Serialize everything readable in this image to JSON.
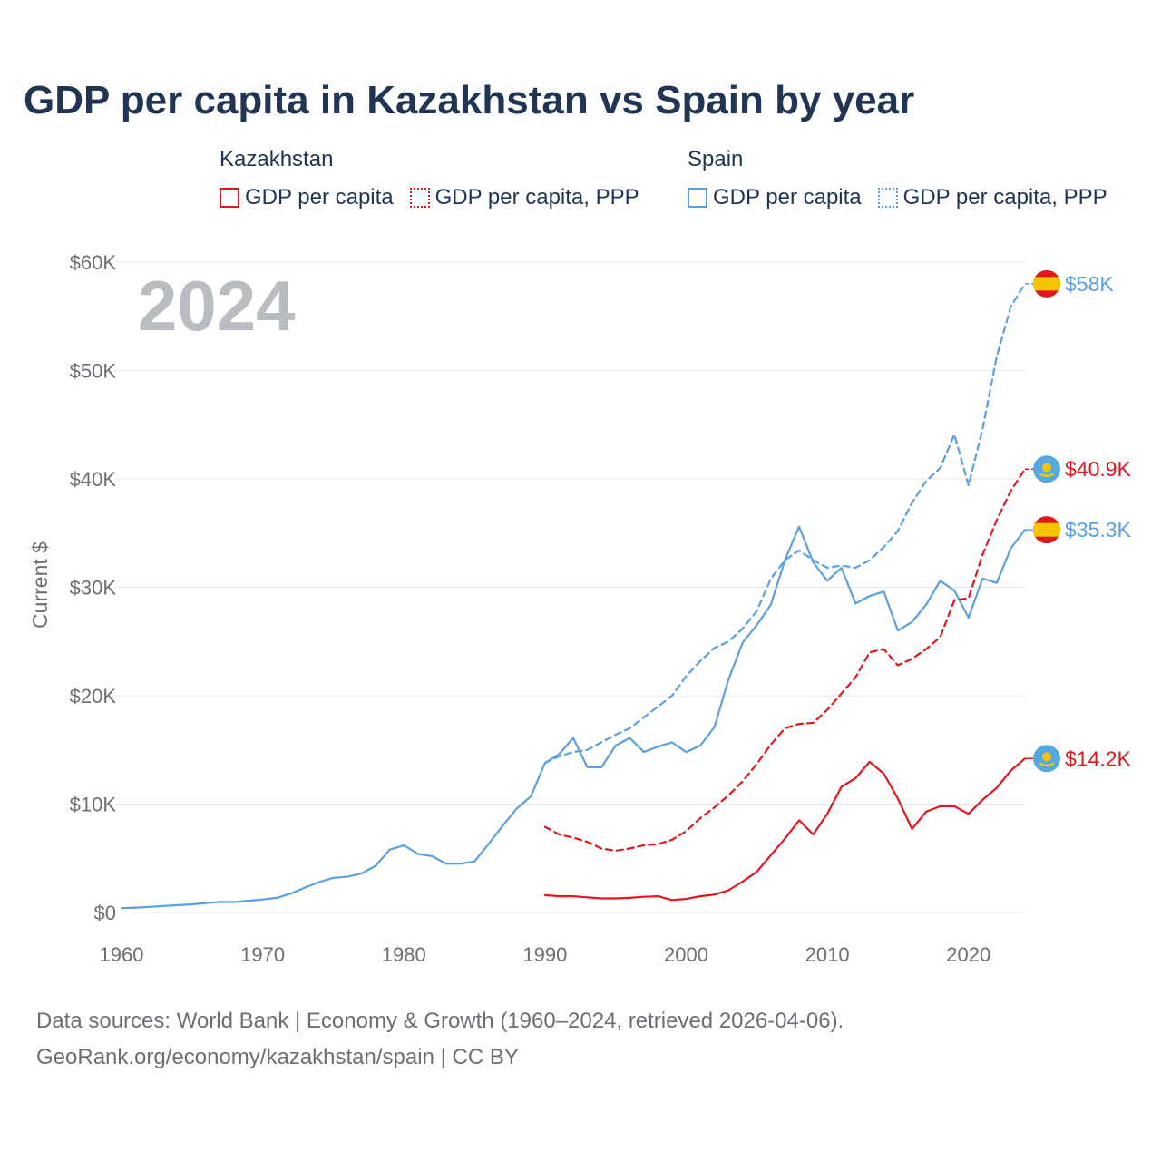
{
  "title": "GDP per capita in Kazakhstan vs Spain by year",
  "year_watermark": "2024",
  "legend": {
    "kazakhstan": {
      "country": "Kazakhstan",
      "item1": "GDP per capita",
      "item2": "GDP per capita, PPP"
    },
    "spain": {
      "country": "Spain",
      "item1": "GDP per capita",
      "item2": "GDP per capita, PPP"
    }
  },
  "colors": {
    "kazakhstan": "#e3161f",
    "spain": "#5a9fe0",
    "grid": "#e8e8e8",
    "axis_text": "#6b6e73"
  },
  "source": {
    "line1": "Data sources: World Bank | Economy & Growth (1960–2024, retrieved 2026-04-06).",
    "line2": "GeoRank.org/economy/kazakhstan/spain | CC BY"
  },
  "chart_data": {
    "type": "line",
    "title": "GDP per capita in Kazakhstan vs Spain by year",
    "xlabel": "",
    "ylabel": "Current $",
    "xlim": [
      1960,
      2024
    ],
    "ylim": [
      0,
      60000
    ],
    "x_ticks": [
      1960,
      1970,
      1980,
      1990,
      2000,
      2010,
      2020
    ],
    "x_tick_labels": [
      "1960",
      "1970",
      "1980",
      "1990",
      "2000",
      "2010",
      "2020"
    ],
    "y_ticks": [
      0,
      10000,
      20000,
      30000,
      40000,
      50000,
      60000
    ],
    "y_tick_labels": [
      "$0",
      "$10K",
      "$20K",
      "$30K",
      "$40K",
      "$50K",
      "$60K"
    ],
    "series": [
      {
        "name": "Spain GDP per capita",
        "country": "Spain",
        "style": "solid",
        "color": "#5a9fe0",
        "end_label": "$35.3K",
        "x": [
          1960,
          1961,
          1962,
          1963,
          1964,
          1965,
          1966,
          1967,
          1968,
          1969,
          1970,
          1971,
          1972,
          1973,
          1974,
          1975,
          1976,
          1977,
          1978,
          1979,
          1980,
          1981,
          1982,
          1983,
          1984,
          1985,
          1986,
          1987,
          1988,
          1989,
          1990,
          1991,
          1992,
          1993,
          1994,
          1995,
          1996,
          1997,
          1998,
          1999,
          2000,
          2001,
          2002,
          2003,
          2004,
          2005,
          2006,
          2007,
          2008,
          2009,
          2010,
          2011,
          2012,
          2013,
          2014,
          2015,
          2016,
          2017,
          2018,
          2019,
          2020,
          2021,
          2022,
          2023,
          2024
        ],
        "values": [
          400,
          450,
          520,
          600,
          680,
          750,
          870,
          970,
          960,
          1080,
          1200,
          1350,
          1750,
          2300,
          2800,
          3200,
          3300,
          3600,
          4300,
          5800,
          6200,
          5400,
          5200,
          4500,
          4500,
          4700,
          6300,
          8000,
          9600,
          10700,
          13800,
          14600,
          16100,
          13400,
          13400,
          15400,
          16100,
          14800,
          15300,
          15700,
          14800,
          15400,
          17100,
          21500,
          24900,
          26500,
          28400,
          32500,
          35600,
          32300,
          30600,
          31800,
          28500,
          29200,
          29600,
          26000,
          26800,
          28400,
          30600,
          29700,
          27200,
          30800,
          30400,
          33600,
          35300
        ]
      },
      {
        "name": "Spain GDP per capita, PPP",
        "country": "Spain",
        "style": "dashed",
        "color": "#5a9fe0",
        "end_label": "$58K",
        "x": [
          1990,
          1991,
          1992,
          1993,
          1994,
          1995,
          1996,
          1997,
          1998,
          1999,
          2000,
          2001,
          2002,
          2003,
          2004,
          2005,
          2006,
          2007,
          2008,
          2009,
          2010,
          2011,
          2012,
          2013,
          2014,
          2015,
          2016,
          2017,
          2018,
          2019,
          2020,
          2021,
          2022,
          2023,
          2024
        ],
        "values": [
          13800,
          14400,
          14800,
          15000,
          15700,
          16400,
          17000,
          18000,
          19000,
          20000,
          21800,
          23200,
          24400,
          25000,
          26200,
          27800,
          30800,
          32500,
          33400,
          32500,
          31800,
          32000,
          31800,
          32500,
          33700,
          35200,
          37800,
          39800,
          41000,
          44100,
          39400,
          44600,
          51300,
          55900,
          58000
        ]
      },
      {
        "name": "Kazakhstan GDP per capita",
        "country": "Kazakhstan",
        "style": "solid",
        "color": "#e3161f",
        "end_label": "$14.2K",
        "x": [
          1990,
          1991,
          1992,
          1993,
          1994,
          1995,
          1996,
          1997,
          1998,
          1999,
          2000,
          2001,
          2002,
          2003,
          2004,
          2005,
          2006,
          2007,
          2008,
          2009,
          2010,
          2011,
          2012,
          2013,
          2014,
          2015,
          2016,
          2017,
          2018,
          2019,
          2020,
          2021,
          2022,
          2023,
          2024
        ],
        "values": [
          1600,
          1500,
          1500,
          1400,
          1300,
          1300,
          1350,
          1450,
          1500,
          1150,
          1250,
          1500,
          1650,
          2050,
          2850,
          3750,
          5300,
          6800,
          8500,
          7200,
          9100,
          11600,
          12400,
          13900,
          12800,
          10500,
          7700,
          9300,
          9800,
          9800,
          9100,
          10400,
          11500,
          13100,
          14200
        ]
      },
      {
        "name": "Kazakhstan GDP per capita, PPP",
        "country": "Kazakhstan",
        "style": "dashed",
        "color": "#e3161f",
        "end_label": "$40.9K",
        "x": [
          1990,
          1991,
          1992,
          1993,
          1994,
          1995,
          1996,
          1997,
          1998,
          1999,
          2000,
          2001,
          2002,
          2003,
          2004,
          2005,
          2006,
          2007,
          2008,
          2009,
          2010,
          2011,
          2012,
          2013,
          2014,
          2015,
          2016,
          2017,
          2018,
          2019,
          2020,
          2021,
          2022,
          2023,
          2024
        ],
        "values": [
          7900,
          7200,
          6900,
          6500,
          5900,
          5700,
          5900,
          6200,
          6300,
          6700,
          7500,
          8700,
          9700,
          10800,
          12100,
          13700,
          15500,
          17000,
          17400,
          17500,
          18700,
          20200,
          21700,
          24000,
          24300,
          22800,
          23400,
          24300,
          25400,
          28800,
          29000,
          33000,
          36200,
          38900,
          40900
        ]
      }
    ]
  }
}
